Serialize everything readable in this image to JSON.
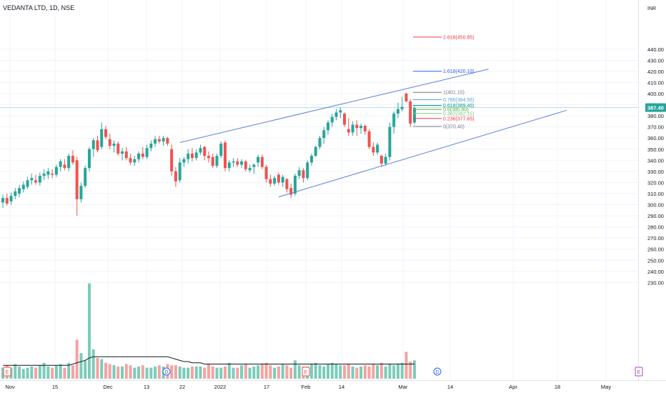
{
  "header": {
    "title": "VEDANTA LTD, 1D, NSE",
    "currency": "INR"
  },
  "price_badge": "387.40",
  "chart_data": {
    "type": "candlestick",
    "title": "VEDANTA LTD, 1D, NSE",
    "ylim": [
      226,
      458
    ],
    "y_ticks": [
      "440.00",
      "430.00",
      "420.00",
      "410.00",
      "400.00",
      "390.00",
      "380.00",
      "370.00",
      "360.00",
      "350.00",
      "340.00",
      "330.00",
      "320.00",
      "310.00",
      "300.00",
      "290.00",
      "280.00",
      "270.00",
      "260.00",
      "250.00",
      "240.00",
      "230.00"
    ],
    "x_tick_labels": [
      "Nov",
      "15",
      "Dec",
      "13",
      "22",
      "2022",
      "17",
      "Feb",
      "14",
      "Mar",
      "14",
      "Apr",
      "18",
      "May"
    ],
    "candles": [
      {
        "o": 302,
        "h": 309,
        "l": 297,
        "c": 306
      },
      {
        "o": 306,
        "h": 310,
        "l": 299,
        "c": 301
      },
      {
        "o": 303,
        "h": 311,
        "l": 300,
        "c": 308
      },
      {
        "o": 308,
        "h": 315,
        "l": 305,
        "c": 312
      },
      {
        "o": 310,
        "h": 318,
        "l": 307,
        "c": 315
      },
      {
        "o": 314,
        "h": 321,
        "l": 311,
        "c": 318
      },
      {
        "o": 316,
        "h": 325,
        "l": 314,
        "c": 322
      },
      {
        "o": 322,
        "h": 328,
        "l": 318,
        "c": 324
      },
      {
        "o": 322,
        "h": 327,
        "l": 318,
        "c": 320
      },
      {
        "o": 320,
        "h": 329,
        "l": 317,
        "c": 326
      },
      {
        "o": 326,
        "h": 332,
        "l": 322,
        "c": 328
      },
      {
        "o": 327,
        "h": 333,
        "l": 323,
        "c": 330
      },
      {
        "o": 328,
        "h": 332,
        "l": 324,
        "c": 327
      },
      {
        "o": 327,
        "h": 336,
        "l": 325,
        "c": 334
      },
      {
        "o": 334,
        "h": 341,
        "l": 330,
        "c": 339
      },
      {
        "o": 336,
        "h": 341,
        "l": 331,
        "c": 333
      },
      {
        "o": 333,
        "h": 346,
        "l": 330,
        "c": 344
      },
      {
        "o": 344,
        "h": 349,
        "l": 336,
        "c": 338
      },
      {
        "o": 340,
        "h": 343,
        "l": 290,
        "c": 305
      },
      {
        "o": 305,
        "h": 320,
        "l": 302,
        "c": 317
      },
      {
        "o": 317,
        "h": 335,
        "l": 315,
        "c": 333
      },
      {
        "o": 333,
        "h": 352,
        "l": 330,
        "c": 350
      },
      {
        "o": 350,
        "h": 360,
        "l": 343,
        "c": 358
      },
      {
        "o": 358,
        "h": 362,
        "l": 347,
        "c": 349
      },
      {
        "o": 352,
        "h": 374,
        "l": 350,
        "c": 368
      },
      {
        "o": 368,
        "h": 371,
        "l": 359,
        "c": 361
      },
      {
        "o": 359,
        "h": 364,
        "l": 350,
        "c": 353
      },
      {
        "o": 353,
        "h": 358,
        "l": 347,
        "c": 355
      },
      {
        "o": 355,
        "h": 357,
        "l": 344,
        "c": 346
      },
      {
        "o": 346,
        "h": 351,
        "l": 340,
        "c": 348
      },
      {
        "o": 348,
        "h": 352,
        "l": 340,
        "c": 342
      },
      {
        "o": 342,
        "h": 346,
        "l": 336,
        "c": 338
      },
      {
        "o": 338,
        "h": 344,
        "l": 335,
        "c": 341
      },
      {
        "o": 341,
        "h": 348,
        "l": 338,
        "c": 346
      },
      {
        "o": 346,
        "h": 352,
        "l": 341,
        "c": 343
      },
      {
        "o": 343,
        "h": 354,
        "l": 341,
        "c": 351
      },
      {
        "o": 351,
        "h": 358,
        "l": 348,
        "c": 355
      },
      {
        "o": 355,
        "h": 362,
        "l": 352,
        "c": 359
      },
      {
        "o": 359,
        "h": 362,
        "l": 355,
        "c": 357
      },
      {
        "o": 357,
        "h": 362,
        "l": 353,
        "c": 360
      },
      {
        "o": 360,
        "h": 361,
        "l": 353,
        "c": 355
      },
      {
        "o": 350,
        "h": 354,
        "l": 326,
        "c": 330
      },
      {
        "o": 330,
        "h": 334,
        "l": 316,
        "c": 321
      },
      {
        "o": 322,
        "h": 342,
        "l": 320,
        "c": 338
      },
      {
        "o": 338,
        "h": 343,
        "l": 334,
        "c": 341
      },
      {
        "o": 341,
        "h": 350,
        "l": 337,
        "c": 346
      },
      {
        "o": 346,
        "h": 351,
        "l": 339,
        "c": 342
      },
      {
        "o": 342,
        "h": 350,
        "l": 340,
        "c": 347
      },
      {
        "o": 347,
        "h": 354,
        "l": 345,
        "c": 351
      },
      {
        "o": 352,
        "h": 353,
        "l": 340,
        "c": 344
      },
      {
        "o": 344,
        "h": 348,
        "l": 338,
        "c": 342
      },
      {
        "o": 343,
        "h": 346,
        "l": 333,
        "c": 335
      },
      {
        "o": 335,
        "h": 346,
        "l": 333,
        "c": 344
      },
      {
        "o": 344,
        "h": 357,
        "l": 342,
        "c": 355
      },
      {
        "o": 356,
        "h": 358,
        "l": 330,
        "c": 333
      },
      {
        "o": 333,
        "h": 340,
        "l": 330,
        "c": 338
      },
      {
        "o": 338,
        "h": 342,
        "l": 334,
        "c": 339
      },
      {
        "o": 339,
        "h": 342,
        "l": 334,
        "c": 336
      },
      {
        "o": 336,
        "h": 341,
        "l": 333,
        "c": 339
      },
      {
        "o": 339,
        "h": 340,
        "l": 330,
        "c": 332
      },
      {
        "o": 331,
        "h": 336,
        "l": 329,
        "c": 333
      },
      {
        "o": 334,
        "h": 337,
        "l": 328,
        "c": 336
      },
      {
        "o": 338,
        "h": 345,
        "l": 334,
        "c": 343
      },
      {
        "o": 343,
        "h": 345,
        "l": 332,
        "c": 334
      },
      {
        "o": 334,
        "h": 336,
        "l": 320,
        "c": 323
      },
      {
        "o": 323,
        "h": 327,
        "l": 316,
        "c": 319
      },
      {
        "o": 319,
        "h": 326,
        "l": 317,
        "c": 324
      },
      {
        "o": 327,
        "h": 329,
        "l": 318,
        "c": 320
      },
      {
        "o": 320,
        "h": 327,
        "l": 316,
        "c": 325
      },
      {
        "o": 323,
        "h": 324,
        "l": 311,
        "c": 314
      },
      {
        "o": 315,
        "h": 319,
        "l": 306,
        "c": 309
      },
      {
        "o": 310,
        "h": 328,
        "l": 308,
        "c": 326
      },
      {
        "o": 326,
        "h": 334,
        "l": 323,
        "c": 331
      },
      {
        "o": 331,
        "h": 333,
        "l": 320,
        "c": 324
      },
      {
        "o": 324,
        "h": 340,
        "l": 322,
        "c": 338
      },
      {
        "o": 338,
        "h": 346,
        "l": 335,
        "c": 344
      },
      {
        "o": 344,
        "h": 353,
        "l": 343,
        "c": 352
      },
      {
        "o": 352,
        "h": 362,
        "l": 350,
        "c": 360
      },
      {
        "o": 360,
        "h": 370,
        "l": 355,
        "c": 367
      },
      {
        "o": 367,
        "h": 376,
        "l": 363,
        "c": 374
      },
      {
        "o": 374,
        "h": 382,
        "l": 370,
        "c": 379
      },
      {
        "o": 379,
        "h": 386,
        "l": 376,
        "c": 383
      },
      {
        "o": 383,
        "h": 388,
        "l": 378,
        "c": 385
      },
      {
        "o": 382,
        "h": 383,
        "l": 370,
        "c": 372
      },
      {
        "o": 368,
        "h": 378,
        "l": 362,
        "c": 365
      },
      {
        "o": 365,
        "h": 375,
        "l": 362,
        "c": 372
      },
      {
        "o": 372,
        "h": 376,
        "l": 362,
        "c": 369
      },
      {
        "o": 369,
        "h": 373,
        "l": 364,
        "c": 371
      },
      {
        "o": 371,
        "h": 372,
        "l": 363,
        "c": 366
      },
      {
        "o": 366,
        "h": 368,
        "l": 350,
        "c": 352
      },
      {
        "o": 352,
        "h": 356,
        "l": 344,
        "c": 347
      },
      {
        "o": 347,
        "h": 356,
        "l": 345,
        "c": 354
      },
      {
        "o": 344,
        "h": 345,
        "l": 334,
        "c": 337
      },
      {
        "o": 337,
        "h": 346,
        "l": 335,
        "c": 343
      },
      {
        "o": 343,
        "h": 374,
        "l": 340,
        "c": 370
      },
      {
        "o": 370,
        "h": 384,
        "l": 364,
        "c": 382
      },
      {
        "o": 382,
        "h": 392,
        "l": 378,
        "c": 386
      },
      {
        "o": 386,
        "h": 397,
        "l": 384,
        "c": 388
      },
      {
        "o": 400,
        "h": 401,
        "l": 392,
        "c": 393
      },
      {
        "o": 393,
        "h": 395,
        "l": 370,
        "c": 373
      },
      {
        "o": 374,
        "h": 389,
        "l": 372,
        "c": 387
      }
    ],
    "volume": [
      9,
      11,
      9,
      12,
      10,
      8,
      9,
      10,
      9,
      11,
      13,
      10,
      9,
      11,
      12,
      9,
      13,
      11,
      32,
      21,
      15,
      78,
      24,
      17,
      16,
      13,
      12,
      11,
      10,
      10,
      12,
      11,
      9,
      10,
      11,
      9,
      9,
      10,
      11,
      10,
      12,
      11,
      11,
      10,
      9,
      9,
      10,
      10,
      10,
      9,
      12,
      10,
      9,
      9,
      10,
      13,
      9,
      9,
      11,
      12,
      9,
      10,
      11,
      12,
      13,
      11,
      9,
      10,
      12,
      11,
      9,
      15,
      11,
      10,
      10,
      12,
      13,
      11,
      10,
      12,
      13,
      12,
      11,
      11,
      12,
      10,
      9,
      10,
      11,
      10,
      12,
      11,
      13,
      10,
      12,
      11,
      12,
      13,
      22,
      14,
      15
    ],
    "volume_ma": [
      11,
      11,
      11,
      11,
      11,
      11,
      11,
      11,
      11,
      11,
      11,
      11,
      11,
      11,
      11,
      11,
      11,
      12,
      13,
      14,
      15,
      17,
      18,
      18,
      18,
      18,
      18,
      18,
      18,
      18,
      18,
      18,
      18,
      18,
      18,
      18,
      18,
      18,
      18,
      18,
      18,
      17,
      16,
      15,
      14,
      14,
      13,
      13,
      13,
      12,
      12,
      12,
      12,
      12,
      12,
      12,
      12,
      12,
      12,
      12,
      12,
      12,
      12,
      12,
      12,
      12,
      12,
      12,
      12,
      12,
      12,
      12,
      12,
      12,
      12,
      12,
      12,
      12,
      12,
      12,
      12,
      12,
      12,
      12,
      12,
      12,
      12,
      12,
      12,
      12,
      12,
      12,
      12,
      12,
      12,
      12,
      12,
      12,
      12,
      12,
      12
    ],
    "volume_ma_scale_note": "",
    "channel_upper": {
      "from": {
        "i": 43,
        "price": 356
      },
      "to": {
        "i": 118,
        "price": 422
      }
    },
    "channel_lower": {
      "from": {
        "i": 67,
        "price": 307
      },
      "to": {
        "i": 137,
        "price": 385
      }
    },
    "fib_levels": [
      {
        "label": "2.618(450.85)",
        "value": 450.85,
        "color": "#f23645"
      },
      {
        "label": "1.618(420.10)",
        "value": 420.1,
        "color": "#2962ff"
      },
      {
        "label": "1(401.15)",
        "value": 401.15,
        "color": "#787b86"
      },
      {
        "label": "0.786(394.55)",
        "value": 394.55,
        "color": "#5aa0d8"
      },
      {
        "label": "0.618(389.40)",
        "value": 389.4,
        "color": "#089981"
      },
      {
        "label": "0.5(385.80)",
        "value": 385.8,
        "color": "#4caf50"
      },
      {
        "label": "0.382(382.15)",
        "value": 382.15,
        "color": "#81c784"
      },
      {
        "label": "0.236(377.65)",
        "value": 377.65,
        "color": "#f23645"
      },
      {
        "label": "0(370.40)",
        "value": 370.4,
        "color": "#787b86"
      }
    ],
    "current_price": 387.4,
    "event_markers": [
      {
        "label": "E",
        "kind": "earnings"
      },
      {
        "label": "D",
        "kind": "dividend"
      },
      {
        "label": "E",
        "kind": "earnings"
      },
      {
        "label": "D",
        "kind": "dividend"
      },
      {
        "label": "E",
        "kind": "earnings"
      }
    ],
    "colors": {
      "up": "#26a69a",
      "down": "#ef5350",
      "up_vol": "#7ccbb9",
      "down_vol": "#f4a3a1",
      "channel": "#5b7fdb",
      "price_line": "#26a69a",
      "grid": "#f0f3fa"
    }
  }
}
